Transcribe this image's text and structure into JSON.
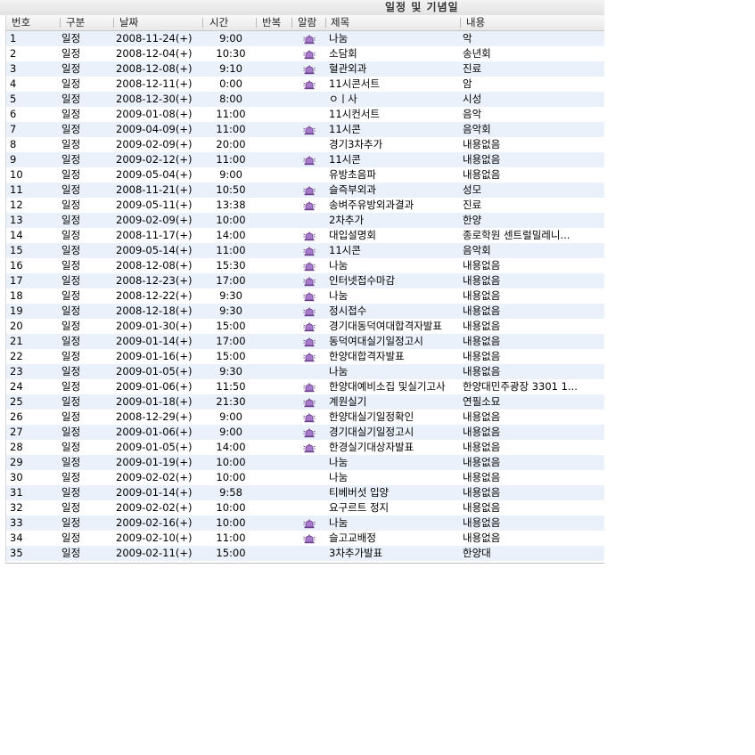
{
  "window": {
    "title": "일정 및 기념일"
  },
  "columns": {
    "no": "번호",
    "category": "구분",
    "date": "날짜",
    "time": "시간",
    "repeat": "반복",
    "alarm": "알람",
    "subject": "제목",
    "content": "내용"
  },
  "colors": {
    "alt_row": "#ebf1fb",
    "alarm_icon": "#a77bc9"
  },
  "rows": [
    {
      "no": "1",
      "category": "일정",
      "date": "2008-11-24(+)",
      "time": "9:00",
      "alarm": true,
      "subject": "나눔",
      "content": "악"
    },
    {
      "no": "2",
      "category": "일정",
      "date": "2008-12-04(+)",
      "time": "10:30",
      "alarm": true,
      "subject": "소담회",
      "content": "송년회"
    },
    {
      "no": "3",
      "category": "일정",
      "date": "2008-12-08(+)",
      "time": "9:10",
      "alarm": true,
      "subject": "혈관외과",
      "content": "진료"
    },
    {
      "no": "4",
      "category": "일정",
      "date": "2008-12-11(+)",
      "time": "0:00",
      "alarm": true,
      "subject": "11시콘서트",
      "content": "암"
    },
    {
      "no": "5",
      "category": "일정",
      "date": "2008-12-30(+)",
      "time": "8:00",
      "alarm": false,
      "subject": "ㅇㅣ사",
      "content": "시성"
    },
    {
      "no": "6",
      "category": "일정",
      "date": "2009-01-08(+)",
      "time": "11:00",
      "alarm": false,
      "subject": "11시컨서트",
      "content": "음악"
    },
    {
      "no": "7",
      "category": "일정",
      "date": "2009-04-09(+)",
      "time": "11:00",
      "alarm": true,
      "subject": "11시콘",
      "content": "음악회"
    },
    {
      "no": "8",
      "category": "일정",
      "date": "2009-02-09(+)",
      "time": "20:00",
      "alarm": false,
      "subject": "경기3차추가",
      "content": "내용없음"
    },
    {
      "no": "9",
      "category": "일정",
      "date": "2009-02-12(+)",
      "time": "11:00",
      "alarm": true,
      "subject": "11시콘",
      "content": "내용없음"
    },
    {
      "no": "10",
      "category": "일정",
      "date": "2009-05-04(+)",
      "time": "9:00",
      "alarm": false,
      "subject": "유방초음파",
      "content": "내용없음"
    },
    {
      "no": "11",
      "category": "일정",
      "date": "2008-11-21(+)",
      "time": "10:50",
      "alarm": true,
      "subject": "슬즉부외과",
      "content": "성모"
    },
    {
      "no": "12",
      "category": "일정",
      "date": "2009-05-11(+)",
      "time": "13:38",
      "alarm": true,
      "subject": "송벼주유방외과결과",
      "content": "진료"
    },
    {
      "no": "13",
      "category": "일정",
      "date": "2009-02-09(+)",
      "time": "10:00",
      "alarm": false,
      "subject": "2차추가",
      "content": "한양"
    },
    {
      "no": "14",
      "category": "일정",
      "date": "2008-11-17(+)",
      "time": "14:00",
      "alarm": true,
      "subject": "대입설명회",
      "content": "종로학원 센트럴밀레니..."
    },
    {
      "no": "15",
      "category": "일정",
      "date": "2009-05-14(+)",
      "time": "11:00",
      "alarm": true,
      "subject": "11시콘",
      "content": "음악회"
    },
    {
      "no": "16",
      "category": "일정",
      "date": "2008-12-08(+)",
      "time": "15:30",
      "alarm": true,
      "subject": "나눔",
      "content": "내용없음"
    },
    {
      "no": "17",
      "category": "일정",
      "date": "2008-12-23(+)",
      "time": "17:00",
      "alarm": true,
      "subject": "인터넷접수마감",
      "content": "내용없음"
    },
    {
      "no": "18",
      "category": "일정",
      "date": "2008-12-22(+)",
      "time": "9:30",
      "alarm": true,
      "subject": "나눔",
      "content": "내용없음"
    },
    {
      "no": "19",
      "category": "일정",
      "date": "2008-12-18(+)",
      "time": "9:30",
      "alarm": true,
      "subject": "정시접수",
      "content": "내용없음"
    },
    {
      "no": "20",
      "category": "일정",
      "date": "2009-01-30(+)",
      "time": "15:00",
      "alarm": true,
      "subject": "경기대동덕여대합격자발표",
      "content": "내용없음"
    },
    {
      "no": "21",
      "category": "일정",
      "date": "2009-01-14(+)",
      "time": "17:00",
      "alarm": true,
      "subject": "동덕여대실기일정고시",
      "content": "내용없음"
    },
    {
      "no": "22",
      "category": "일정",
      "date": "2009-01-16(+)",
      "time": "15:00",
      "alarm": true,
      "subject": "한양대합격자발표",
      "content": "내용없음"
    },
    {
      "no": "23",
      "category": "일정",
      "date": "2009-01-05(+)",
      "time": "9:30",
      "alarm": false,
      "subject": "나눔",
      "content": "내용없음"
    },
    {
      "no": "24",
      "category": "일정",
      "date": "2009-01-06(+)",
      "time": "11:50",
      "alarm": true,
      "subject": "한양대예비소집 및실기고사",
      "content": "한양대민주광장 3301 1..."
    },
    {
      "no": "25",
      "category": "일정",
      "date": "2009-01-18(+)",
      "time": "21:30",
      "alarm": true,
      "subject": "계원실기",
      "content": "연필소묘"
    },
    {
      "no": "26",
      "category": "일정",
      "date": "2008-12-29(+)",
      "time": "9:00",
      "alarm": true,
      "subject": "한양대실기일정확인",
      "content": "내용없음"
    },
    {
      "no": "27",
      "category": "일정",
      "date": "2009-01-06(+)",
      "time": "9:00",
      "alarm": true,
      "subject": "경기대실기일정고시",
      "content": "내용없음"
    },
    {
      "no": "28",
      "category": "일정",
      "date": "2009-01-05(+)",
      "time": "14:00",
      "alarm": true,
      "subject": "한경실기대상자발표",
      "content": "내용없음"
    },
    {
      "no": "29",
      "category": "일정",
      "date": "2009-01-19(+)",
      "time": "10:00",
      "alarm": false,
      "subject": "나눔",
      "content": "내용없음"
    },
    {
      "no": "30",
      "category": "일정",
      "date": "2009-02-02(+)",
      "time": "10:00",
      "alarm": false,
      "subject": "나눔",
      "content": "내용없음"
    },
    {
      "no": "31",
      "category": "일정",
      "date": "2009-01-14(+)",
      "time": "9:58",
      "alarm": false,
      "subject": "티베버섯 입양",
      "content": "내용없음"
    },
    {
      "no": "32",
      "category": "일정",
      "date": "2009-02-02(+)",
      "time": "10:00",
      "alarm": false,
      "subject": "요구르트 정지",
      "content": "내용없음"
    },
    {
      "no": "33",
      "category": "일정",
      "date": "2009-02-16(+)",
      "time": "10:00",
      "alarm": true,
      "subject": "나눔",
      "content": "내용없음"
    },
    {
      "no": "34",
      "category": "일정",
      "date": "2009-02-10(+)",
      "time": "11:00",
      "alarm": true,
      "subject": "슬고교배정",
      "content": "내용없음"
    },
    {
      "no": "35",
      "category": "일정",
      "date": "2009-02-11(+)",
      "time": "15:00",
      "alarm": false,
      "subject": "3차추가발표",
      "content": "한양대"
    }
  ]
}
